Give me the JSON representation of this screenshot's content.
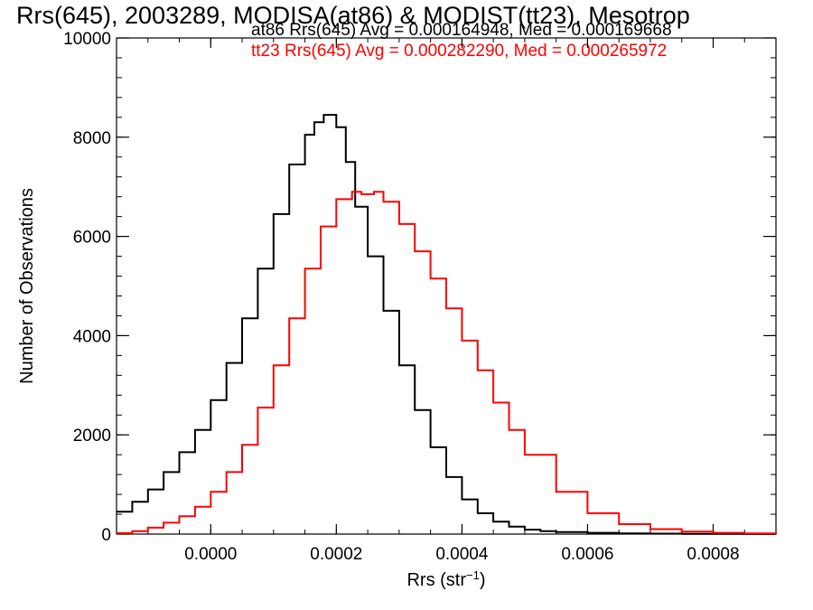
{
  "chart_data": {
    "type": "line",
    "title": "Rrs(645), 2003289, MODISA(at86) & MODIST(tt23), Mesotrop",
    "xlabel_main": "Rrs (str",
    "xlabel_sup": "−1",
    "xlabel_close": ")",
    "ylabel": "Number of Observations",
    "xlim": [
      -0.00015,
      0.0009
    ],
    "ylim": [
      0,
      10000
    ],
    "xticks": [
      {
        "v": 0.0,
        "label": "0.0000"
      },
      {
        "v": 0.0002,
        "label": "0.0002"
      },
      {
        "v": 0.0004,
        "label": "0.0004"
      },
      {
        "v": 0.0006,
        "label": "0.0006"
      },
      {
        "v": 0.0008,
        "label": "0.0008"
      }
    ],
    "yticks": [
      {
        "v": 0,
        "label": "0"
      },
      {
        "v": 2000,
        "label": "2000"
      },
      {
        "v": 4000,
        "label": "4000"
      },
      {
        "v": 6000,
        "label": "6000"
      },
      {
        "v": 8000,
        "label": "8000"
      },
      {
        "v": 10000,
        "label": "10000"
      }
    ],
    "legend_position": "top-right",
    "series": [
      {
        "name": "at86",
        "label": "at86 Rrs(645) Avg = 0.000164948, Med = 0.000169668",
        "color": "#000000",
        "x": [
          -0.00015,
          -0.000125,
          -0.0001,
          -7.5e-05,
          -5e-05,
          -2.5e-05,
          0.0,
          2.5e-05,
          5e-05,
          7.5e-05,
          0.0001,
          0.000125,
          0.00015,
          0.000165,
          0.00018,
          0.0002,
          0.000215,
          0.00023,
          0.00025,
          0.000275,
          0.0003,
          0.000325,
          0.00035,
          0.000375,
          0.0004,
          0.000425,
          0.00045,
          0.000475,
          0.0005,
          0.000525,
          0.00055,
          0.0006,
          0.00065,
          0.0007,
          0.00075,
          0.0008,
          0.00085,
          0.0009
        ],
        "y": [
          450,
          650,
          900,
          1250,
          1650,
          2100,
          2700,
          3450,
          4350,
          5350,
          6450,
          7450,
          8050,
          8300,
          8450,
          8200,
          7500,
          6600,
          5600,
          4500,
          3400,
          2500,
          1750,
          1150,
          700,
          420,
          250,
          150,
          90,
          60,
          40,
          25,
          15,
          10,
          6,
          4,
          2,
          0
        ]
      },
      {
        "name": "tt23",
        "label": "tt23 Rrs(645) Avg = 0.000282290, Med = 0.000265972",
        "color": "#ff0000",
        "x": [
          -0.00015,
          -0.000125,
          -0.0001,
          -7.5e-05,
          -5e-05,
          -2.5e-05,
          0.0,
          2.5e-05,
          5e-05,
          7.5e-05,
          0.0001,
          0.000125,
          0.00015,
          0.000175,
          0.0002,
          0.000225,
          0.00024,
          0.00025,
          0.00026,
          0.000275,
          0.0003,
          0.000325,
          0.00035,
          0.000375,
          0.0004,
          0.000425,
          0.00045,
          0.000475,
          0.0005,
          0.00055,
          0.0006,
          0.00065,
          0.0007,
          0.00075,
          0.0008,
          0.00085,
          0.0009
        ],
        "y": [
          20,
          60,
          130,
          230,
          360,
          550,
          850,
          1250,
          1800,
          2550,
          3400,
          4350,
          5350,
          6200,
          6750,
          6900,
          6850,
          6850,
          6900,
          6700,
          6250,
          5700,
          5150,
          4550,
          3900,
          3300,
          2650,
          2100,
          1600,
          850,
          420,
          200,
          100,
          50,
          25,
          12,
          5
        ]
      }
    ]
  }
}
